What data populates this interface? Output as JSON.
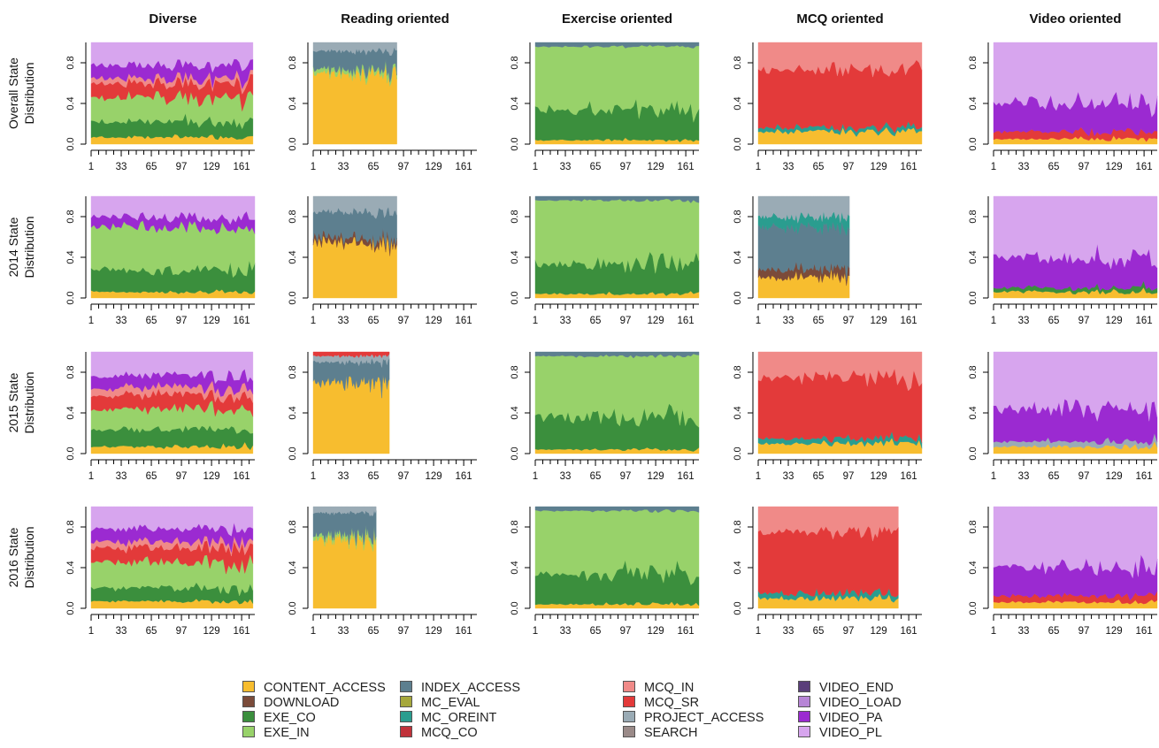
{
  "figure": {
    "column_titles": [
      "Diverse",
      "Reading oriented",
      "Exercise oriented",
      "MCQ oriented",
      "Video oriented"
    ],
    "row_titles": [
      [
        "Overall State",
        "Distribution"
      ],
      [
        "2014 State",
        "Distribution"
      ],
      [
        "2015 State",
        "Distribution"
      ],
      [
        "2016 State",
        "Distribution"
      ]
    ]
  },
  "legend": {
    "entries": [
      {
        "label": "CONTENT_ACCESS",
        "color": "#f7bd2f"
      },
      {
        "label": "DOWNLOAD",
        "color": "#7b4b3a"
      },
      {
        "label": "EXE_CO",
        "color": "#3b8f3d"
      },
      {
        "label": "EXE_IN",
        "color": "#98d26a"
      },
      {
        "label": "INDEX_ACCESS",
        "color": "#5d7f8f"
      },
      {
        "label": "MC_EVAL",
        "color": "#a6a83c"
      },
      {
        "label": "MC_OREINT",
        "color": "#2a9d8f"
      },
      {
        "label": "MCQ_CO",
        "color": "#c0323a"
      },
      {
        "label": "MCQ_IN",
        "color": "#f08a88"
      },
      {
        "label": "MCQ_SR",
        "color": "#e33a3a"
      },
      {
        "label": "PROJECT_ACCESS",
        "color": "#9aabb5"
      },
      {
        "label": "SEARCH",
        "color": "#9a8a88"
      },
      {
        "label": "VIDEO_END",
        "color": "#5a3f7a"
      },
      {
        "label": "VIDEO_LOAD",
        "color": "#b785d6"
      },
      {
        "label": "VIDEO_PA",
        "color": "#9b2ad1"
      },
      {
        "label": "VIDEO_PL",
        "color": "#d7a5ee"
      }
    ]
  },
  "chart_data": {
    "type": "area",
    "layout": "grid 4 rows x 5 columns of stacked 100% state-distribution plots",
    "x_ticks": [
      "1",
      "33",
      "65",
      "97",
      "129",
      "161"
    ],
    "y_ticks": [
      "0.0",
      "0.4",
      "0.8"
    ],
    "ylim": [
      0,
      1
    ],
    "xlim": [
      1,
      175
    ],
    "grid": false,
    "legend_placement": "bottom",
    "panels": [
      {
        "row": "Overall",
        "col": "Diverse",
        "x_end": 173,
        "shares": {
          "CONTENT_ACCESS": 0.07,
          "EXE_CO": 0.15,
          "EXE_IN": 0.24,
          "MCQ_SR": 0.14,
          "MCQ_IN": 0.05,
          "VIDEO_PA": 0.13,
          "VIDEO_PL": 0.22
        }
      },
      {
        "row": "Overall",
        "col": "Reading oriented",
        "x_end": 90,
        "shares": {
          "CONTENT_ACCESS": 0.7,
          "INDEX_ACCESS": 0.18,
          "EXE_IN": 0.04,
          "PROJECT_ACCESS": 0.08
        }
      },
      {
        "row": "Overall",
        "col": "Exercise oriented",
        "x_end": 175,
        "shares": {
          "CONTENT_ACCESS": 0.04,
          "EXE_CO": 0.3,
          "EXE_IN": 0.62,
          "INDEX_ACCESS": 0.04
        }
      },
      {
        "row": "Overall",
        "col": "MCQ oriented",
        "x_end": 175,
        "shares": {
          "CONTENT_ACCESS": 0.12,
          "MC_OREINT": 0.04,
          "MCQ_SR": 0.58,
          "MCQ_IN": 0.26
        }
      },
      {
        "row": "Overall",
        "col": "Video oriented",
        "x_end": 175,
        "shares": {
          "CONTENT_ACCESS": 0.05,
          "MCQ_SR": 0.07,
          "VIDEO_PA": 0.28,
          "VIDEO_PL": 0.6
        }
      },
      {
        "row": "2014",
        "col": "Diverse",
        "x_end": 175,
        "shares": {
          "CONTENT_ACCESS": 0.06,
          "EXE_CO": 0.22,
          "EXE_IN": 0.42,
          "VIDEO_PA": 0.1,
          "VIDEO_PL": 0.2
        }
      },
      {
        "row": "2014",
        "col": "Reading oriented",
        "x_end": 90,
        "shares": {
          "CONTENT_ACCESS": 0.55,
          "INDEX_ACCESS": 0.25,
          "DOWNLOAD": 0.05,
          "PROJECT_ACCESS": 0.15
        }
      },
      {
        "row": "2014",
        "col": "Exercise oriented",
        "x_end": 175,
        "shares": {
          "CONTENT_ACCESS": 0.04,
          "EXE_CO": 0.3,
          "EXE_IN": 0.62,
          "INDEX_ACCESS": 0.04
        }
      },
      {
        "row": "2014",
        "col": "MCQ oriented",
        "x_end": 98,
        "shares": {
          "CONTENT_ACCESS": 0.2,
          "DOWNLOAD": 0.08,
          "INDEX_ACCESS": 0.42,
          "MC_OREINT": 0.1,
          "PROJECT_ACCESS": 0.2
        }
      },
      {
        "row": "2014",
        "col": "Video oriented",
        "x_end": 175,
        "shares": {
          "CONTENT_ACCESS": 0.06,
          "EXE_CO": 0.04,
          "VIDEO_PA": 0.3,
          "VIDEO_PL": 0.6
        }
      },
      {
        "row": "2015",
        "col": "Diverse",
        "x_end": 173,
        "shares": {
          "CONTENT_ACCESS": 0.07,
          "EXE_CO": 0.17,
          "EXE_IN": 0.2,
          "MCQ_SR": 0.14,
          "MCQ_IN": 0.07,
          "VIDEO_PA": 0.12,
          "VIDEO_PL": 0.23
        }
      },
      {
        "row": "2015",
        "col": "Reading oriented",
        "x_end": 82,
        "shares": {
          "CONTENT_ACCESS": 0.7,
          "INDEX_ACCESS": 0.2,
          "MCQ_SR": 0.04,
          "PROJECT_ACCESS": 0.06
        }
      },
      {
        "row": "2015",
        "col": "Exercise oriented",
        "x_end": 175,
        "shares": {
          "CONTENT_ACCESS": 0.04,
          "EXE_CO": 0.32,
          "EXE_IN": 0.6,
          "INDEX_ACCESS": 0.04
        }
      },
      {
        "row": "2015",
        "col": "MCQ oriented",
        "x_end": 175,
        "shares": {
          "CONTENT_ACCESS": 0.1,
          "MC_OREINT": 0.05,
          "MCQ_SR": 0.6,
          "MCQ_IN": 0.25
        }
      },
      {
        "row": "2015",
        "col": "Video oriented",
        "x_end": 175,
        "shares": {
          "CONTENT_ACCESS": 0.07,
          "PROJECT_ACCESS": 0.05,
          "VIDEO_PA": 0.33,
          "VIDEO_PL": 0.55
        }
      },
      {
        "row": "2016",
        "col": "Diverse",
        "x_end": 173,
        "shares": {
          "CONTENT_ACCESS": 0.07,
          "EXE_CO": 0.13,
          "EXE_IN": 0.25,
          "MCQ_SR": 0.14,
          "MCQ_IN": 0.06,
          "VIDEO_PA": 0.13,
          "VIDEO_PL": 0.22
        }
      },
      {
        "row": "2016",
        "col": "Reading oriented",
        "x_end": 68,
        "shares": {
          "CONTENT_ACCESS": 0.68,
          "INDEX_ACCESS": 0.22,
          "EXE_IN": 0.04,
          "PROJECT_ACCESS": 0.06
        }
      },
      {
        "row": "2016",
        "col": "Exercise oriented",
        "x_end": 175,
        "shares": {
          "CONTENT_ACCESS": 0.04,
          "EXE_CO": 0.3,
          "EXE_IN": 0.62,
          "INDEX_ACCESS": 0.04
        }
      },
      {
        "row": "2016",
        "col": "MCQ oriented",
        "x_end": 150,
        "shares": {
          "CONTENT_ACCESS": 0.1,
          "MC_OREINT": 0.05,
          "MCQ_SR": 0.6,
          "MCQ_IN": 0.25
        }
      },
      {
        "row": "2016",
        "col": "Video oriented",
        "x_end": 175,
        "shares": {
          "CONTENT_ACCESS": 0.06,
          "MCQ_SR": 0.06,
          "VIDEO_PA": 0.28,
          "VIDEO_PL": 0.6
        }
      }
    ]
  }
}
